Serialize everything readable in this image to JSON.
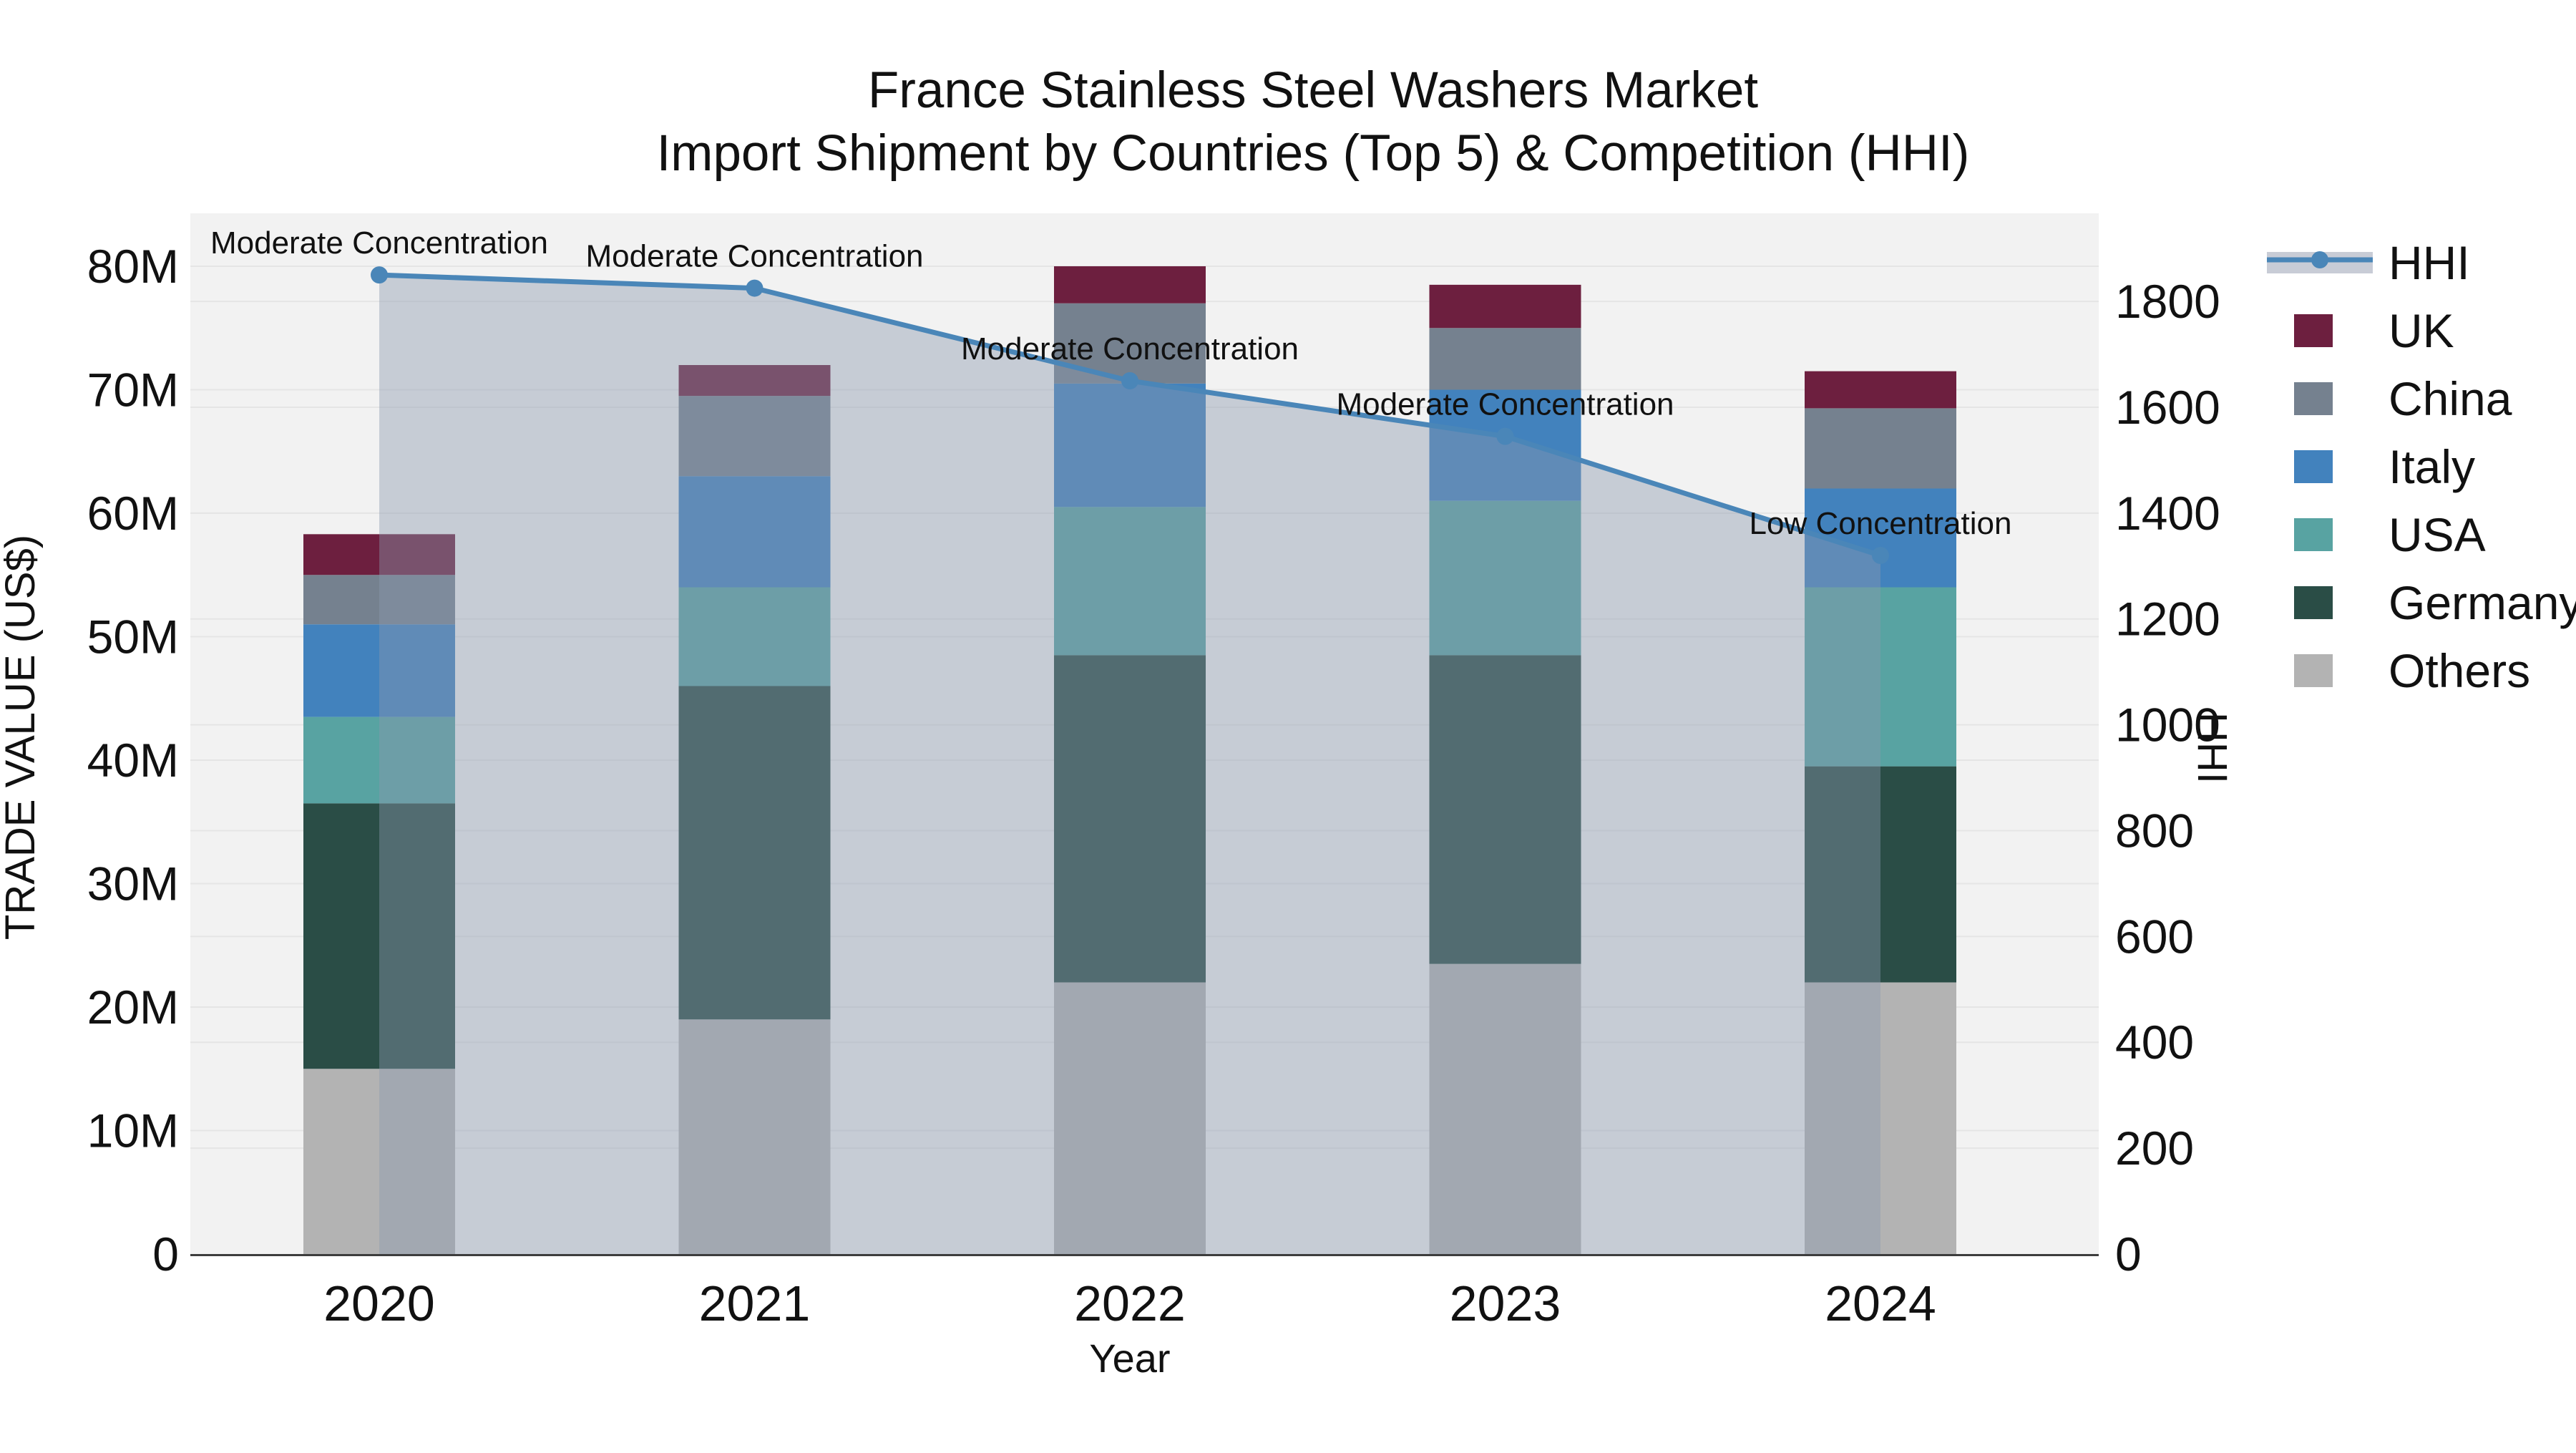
{
  "figure": {
    "title_line1": "France Stainless Steel Washers Market",
    "title_line2": "Import Shipment by Countries (Top 5) & Competition (HHI)",
    "x_axis_title": "Year",
    "y_left_axis_title": "TRADE VALUE (US$)",
    "y_right_axis_title": "HHI"
  },
  "chart_data": {
    "type": "bar",
    "subtype": "stacked-bar-with-line",
    "categories": [
      "2020",
      "2021",
      "2022",
      "2023",
      "2024"
    ],
    "value_unit": "million US$",
    "series": [
      {
        "name": "Others",
        "color": "#b3b3b3",
        "values": [
          15.0,
          19.0,
          22.0,
          23.5,
          22.0
        ]
      },
      {
        "name": "Germany",
        "color": "#2a4d46",
        "values": [
          21.5,
          27.0,
          26.5,
          25.0,
          17.5
        ]
      },
      {
        "name": "USA",
        "color": "#58a3a2",
        "values": [
          7.0,
          8.0,
          12.0,
          12.5,
          14.5
        ]
      },
      {
        "name": "Italy",
        "color": "#4282bd",
        "values": [
          7.5,
          9.0,
          10.0,
          9.0,
          8.0
        ]
      },
      {
        "name": "China",
        "color": "#75818f",
        "values": [
          4.0,
          6.5,
          6.5,
          5.0,
          6.5
        ]
      },
      {
        "name": "UK",
        "color": "#6d1f3f",
        "values": [
          3.3,
          2.5,
          3.0,
          3.5,
          3.0
        ]
      }
    ],
    "stack_totals": [
      58.3,
      72.0,
      80.0,
      78.5,
      71.5
    ],
    "line_series": {
      "name": "HHI",
      "color": "#4a86b8",
      "area_fill_color": "rgba(139,152,175,0.42)",
      "legend_band_color": "#c8ccd6",
      "values": [
        1850,
        1825,
        1650,
        1545,
        1320
      ]
    },
    "annotations": [
      {
        "category_index": 0,
        "text": "Moderate Concentration"
      },
      {
        "category_index": 1,
        "text": "Moderate Concentration"
      },
      {
        "category_index": 2,
        "text": "Moderate Concentration"
      },
      {
        "category_index": 3,
        "text": "Moderate Concentration"
      },
      {
        "category_index": 4,
        "text": "Low Concentration"
      }
    ],
    "y_left_axis": {
      "tick_labels": [
        "0",
        "10M",
        "20M",
        "30M",
        "40M",
        "50M",
        "60M",
        "70M",
        "80M"
      ],
      "tick_values": [
        0,
        10,
        20,
        30,
        40,
        50,
        60,
        70,
        80
      ],
      "range": [
        0,
        84.2
      ],
      "grid": true
    },
    "y_right_axis": {
      "tick_labels": [
        "0",
        "200",
        "400",
        "600",
        "800",
        "1000",
        "1200",
        "1400",
        "1600",
        "1800"
      ],
      "tick_values": [
        0,
        200,
        400,
        600,
        800,
        1000,
        1200,
        1400,
        1600,
        1800
      ],
      "range": [
        0,
        1964
      ],
      "grid": true
    },
    "legend": {
      "order": [
        "HHI",
        "UK",
        "China",
        "Italy",
        "USA",
        "Germany",
        "Others"
      ],
      "position": "right"
    },
    "plot_background": "#f2f2f2",
    "grid_color": "#e5e5e5",
    "axis_line_color": "#3d3d3d",
    "text_color": "#111111"
  }
}
